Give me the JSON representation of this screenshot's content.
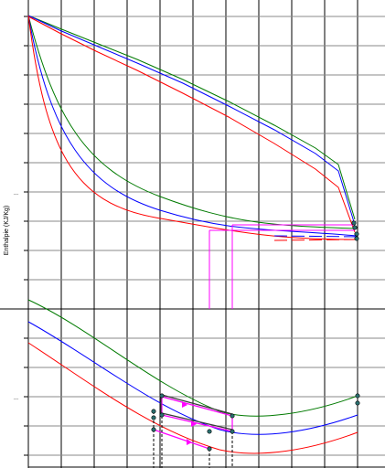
{
  "chart_data": {
    "type": "line",
    "ylabel": "Enthalpie (KJ/Kg)",
    "y_tick_labels": [
      "...",
      "..."
    ],
    "grid": true,
    "series": [
      {
        "color": "#007a00"
      },
      {
        "color": "#0000ff"
      },
      {
        "color": "#ff0000"
      }
    ],
    "cycle_color": "#ff00ff",
    "marker_color": "#2a7070"
  }
}
